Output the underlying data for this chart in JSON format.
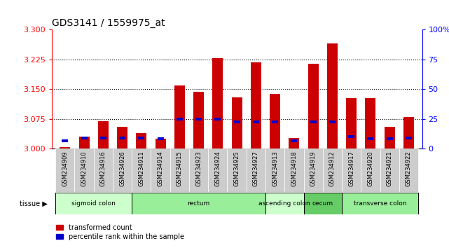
{
  "title": "GDS3141 / 1559975_at",
  "samples": [
    "GSM234909",
    "GSM234910",
    "GSM234916",
    "GSM234926",
    "GSM234911",
    "GSM234914",
    "GSM234915",
    "GSM234923",
    "GSM234924",
    "GSM234925",
    "GSM234927",
    "GSM234913",
    "GSM234918",
    "GSM234919",
    "GSM234912",
    "GSM234917",
    "GSM234920",
    "GSM234921",
    "GSM234922"
  ],
  "red_values": [
    3.005,
    3.03,
    3.07,
    3.055,
    3.04,
    3.025,
    3.16,
    3.143,
    3.228,
    3.13,
    3.217,
    3.138,
    3.028,
    3.215,
    3.265,
    3.128,
    3.128,
    3.055,
    3.08
  ],
  "blue_values": [
    3.02,
    3.028,
    3.028,
    3.028,
    3.028,
    3.025,
    3.075,
    3.075,
    3.075,
    3.068,
    3.068,
    3.068,
    3.02,
    3.068,
    3.068,
    3.03,
    3.025,
    3.025,
    3.028
  ],
  "y_min": 3.0,
  "y_max": 3.3,
  "y_ticks": [
    3.0,
    3.075,
    3.15,
    3.225,
    3.3
  ],
  "right_ticks": [
    0,
    25,
    50,
    75,
    100
  ],
  "tissue_groups": [
    {
      "label": "sigmoid colon",
      "start": 0,
      "end": 4,
      "color": "#ccffcc"
    },
    {
      "label": "rectum",
      "start": 4,
      "end": 11,
      "color": "#99ee99"
    },
    {
      "label": "ascending colon",
      "start": 11,
      "end": 13,
      "color": "#ccffcc"
    },
    {
      "label": "cecum",
      "start": 13,
      "end": 15,
      "color": "#66cc66"
    },
    {
      "label": "transverse colon",
      "start": 15,
      "end": 19,
      "color": "#99ee99"
    }
  ],
  "bar_color": "#cc0000",
  "blue_color": "#0000cc",
  "bg_color": "#ffffff",
  "bar_width": 0.55,
  "base": 3.0
}
